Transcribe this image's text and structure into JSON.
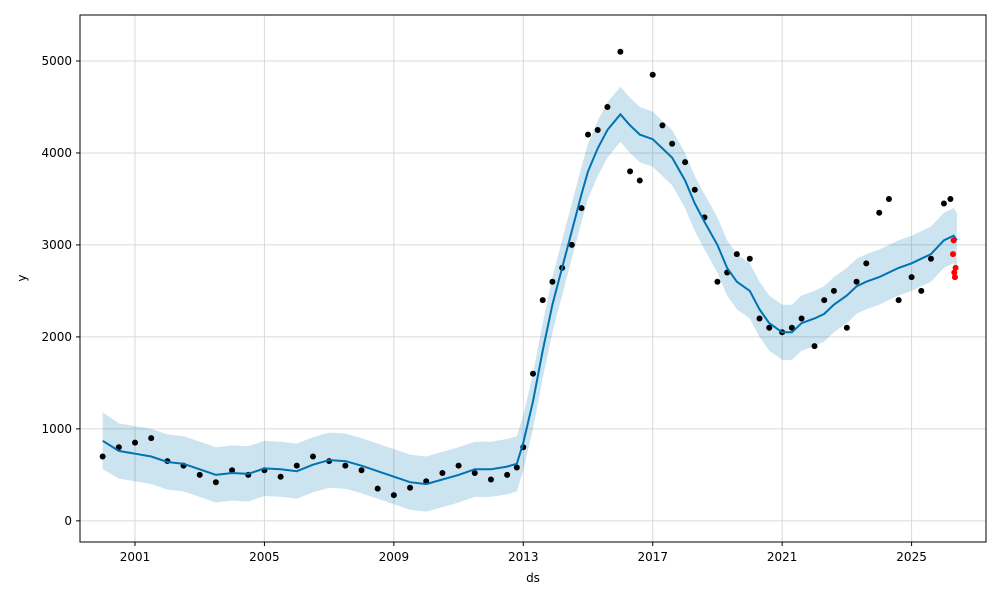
{
  "chart_data": {
    "type": "line",
    "title": "",
    "xlabel": "ds",
    "ylabel": "y",
    "xlim": [
      1999.3,
      2027.3
    ],
    "ylim": [
      -230,
      5500
    ],
    "x_ticks": [
      2001,
      2005,
      2009,
      2013,
      2017,
      2021,
      2025
    ],
    "x_tick_labels": [
      "2001",
      "2005",
      "2009",
      "2013",
      "2017",
      "2021",
      "2025"
    ],
    "y_ticks": [
      0,
      1000,
      2000,
      3000,
      4000,
      5000
    ],
    "y_tick_labels": [
      "0",
      "1000",
      "2000",
      "3000",
      "4000",
      "5000"
    ],
    "grid": true,
    "colors": {
      "observed": "#000000",
      "forecast_line": "#0072B2",
      "uncertainty": "#0072B2",
      "recent_points": "#ff0000"
    },
    "series": [
      {
        "kind": "forecast",
        "x": [
          2000.0,
          2000.5,
          2001.0,
          2001.5,
          2002.0,
          2002.5,
          2003.0,
          2003.5,
          2004.0,
          2004.5,
          2005.0,
          2005.5,
          2006.0,
          2006.5,
          2007.0,
          2007.5,
          2008.0,
          2008.5,
          2009.0,
          2009.5,
          2010.0,
          2010.5,
          2011.0,
          2011.5,
          2012.0,
          2012.5,
          2012.8,
          2013.0,
          2013.3,
          2013.6,
          2013.9,
          2014.2,
          2014.5,
          2014.8,
          2015.0,
          2015.3,
          2015.6,
          2016.0,
          2016.3,
          2016.6,
          2017.0,
          2017.3,
          2017.6,
          2018.0,
          2018.3,
          2018.6,
          2019.0,
          2019.3,
          2019.6,
          2020.0,
          2020.3,
          2020.6,
          2021.0,
          2021.3,
          2021.6,
          2022.0,
          2022.3,
          2022.6,
          2023.0,
          2023.3,
          2023.6,
          2024.0,
          2024.3,
          2024.6,
          2025.0,
          2025.3,
          2025.6,
          2026.0,
          2026.3,
          2026.4
        ],
        "y": [
          870,
          760,
          730,
          700,
          640,
          620,
          560,
          500,
          520,
          510,
          570,
          560,
          540,
          610,
          660,
          650,
          600,
          540,
          480,
          420,
          400,
          450,
          500,
          560,
          560,
          590,
          620,
          850,
          1300,
          1850,
          2350,
          2750,
          3150,
          3550,
          3800,
          4050,
          4250,
          4420,
          4300,
          4200,
          4150,
          4050,
          3950,
          3700,
          3450,
          3250,
          3000,
          2750,
          2600,
          2500,
          2300,
          2150,
          2050,
          2050,
          2150,
          2200,
          2250,
          2350,
          2450,
          2550,
          2600,
          2650,
          2700,
          2750,
          2800,
          2850,
          2900,
          3050,
          3100,
          3050
        ],
        "lower": [
          560,
          460,
          430,
          400,
          340,
          320,
          260,
          200,
          220,
          210,
          270,
          260,
          240,
          310,
          360,
          350,
          300,
          240,
          180,
          120,
          100,
          150,
          200,
          260,
          260,
          290,
          320,
          550,
          1000,
          1550,
          2050,
          2450,
          2850,
          3250,
          3500,
          3750,
          3950,
          4120,
          4000,
          3900,
          3850,
          3750,
          3650,
          3400,
          3150,
          2950,
          2700,
          2450,
          2300,
          2200,
          2000,
          1850,
          1750,
          1750,
          1850,
          1900,
          1950,
          2050,
          2150,
          2250,
          2300,
          2350,
          2400,
          2450,
          2500,
          2550,
          2600,
          2750,
          2800,
          2750
        ],
        "upper": [
          1180,
          1060,
          1030,
          1000,
          940,
          920,
          860,
          800,
          820,
          810,
          870,
          860,
          840,
          910,
          960,
          950,
          900,
          840,
          780,
          720,
          700,
          750,
          800,
          860,
          860,
          890,
          920,
          1150,
          1600,
          2150,
          2650,
          3050,
          3450,
          3850,
          4100,
          4350,
          4550,
          4720,
          4600,
          4500,
          4450,
          4350,
          4250,
          4000,
          3750,
          3550,
          3300,
          3050,
          2900,
          2800,
          2600,
          2450,
          2350,
          2350,
          2450,
          2500,
          2550,
          2650,
          2750,
          2850,
          2900,
          2950,
          3000,
          3050,
          3100,
          3150,
          3200,
          3350,
          3400,
          3350
        ]
      },
      {
        "kind": "observed",
        "x": [
          2000.0,
          2000.5,
          2001.0,
          2001.5,
          2002.0,
          2002.5,
          2003.0,
          2003.5,
          2004.0,
          2004.5,
          2005.0,
          2005.5,
          2006.0,
          2006.5,
          2007.0,
          2007.5,
          2008.0,
          2008.5,
          2009.0,
          2009.5,
          2010.0,
          2010.5,
          2011.0,
          2011.5,
          2012.0,
          2012.5,
          2012.8,
          2013.0,
          2013.3,
          2013.6,
          2013.9,
          2014.2,
          2014.5,
          2014.8,
          2015.0,
          2015.3,
          2015.6,
          2016.0,
          2016.3,
          2016.6,
          2017.0,
          2017.3,
          2017.6,
          2018.0,
          2018.3,
          2018.6,
          2019.0,
          2019.3,
          2019.6,
          2020.0,
          2020.3,
          2020.6,
          2021.0,
          2021.3,
          2021.6,
          2022.0,
          2022.3,
          2022.6,
          2023.0,
          2023.3,
          2023.6,
          2024.0,
          2024.3,
          2024.6,
          2025.0,
          2025.3,
          2025.6,
          2026.0,
          2026.2
        ],
        "y": [
          700,
          800,
          850,
          900,
          650,
          600,
          500,
          420,
          550,
          500,
          550,
          480,
          600,
          700,
          650,
          600,
          550,
          350,
          280,
          360,
          430,
          520,
          600,
          520,
          450,
          500,
          580,
          800,
          1600,
          2400,
          2600,
          2750,
          3000,
          3400,
          4200,
          4250,
          4500,
          5100,
          3800,
          3700,
          4850,
          4300,
          4100,
          3900,
          3600,
          3300,
          2600,
          2700,
          2900,
          2850,
          2200,
          2100,
          2050,
          2100,
          2200,
          1900,
          2400,
          2500,
          2100,
          2600,
          2800,
          3350,
          3500,
          2400,
          2650,
          2500,
          2850,
          3450,
          3500
        ]
      },
      {
        "kind": "recent",
        "x": [
          2026.28,
          2026.3,
          2026.32,
          2026.34,
          2026.36
        ],
        "y": [
          2900,
          3050,
          2700,
          2650,
          2750
        ]
      }
    ]
  }
}
